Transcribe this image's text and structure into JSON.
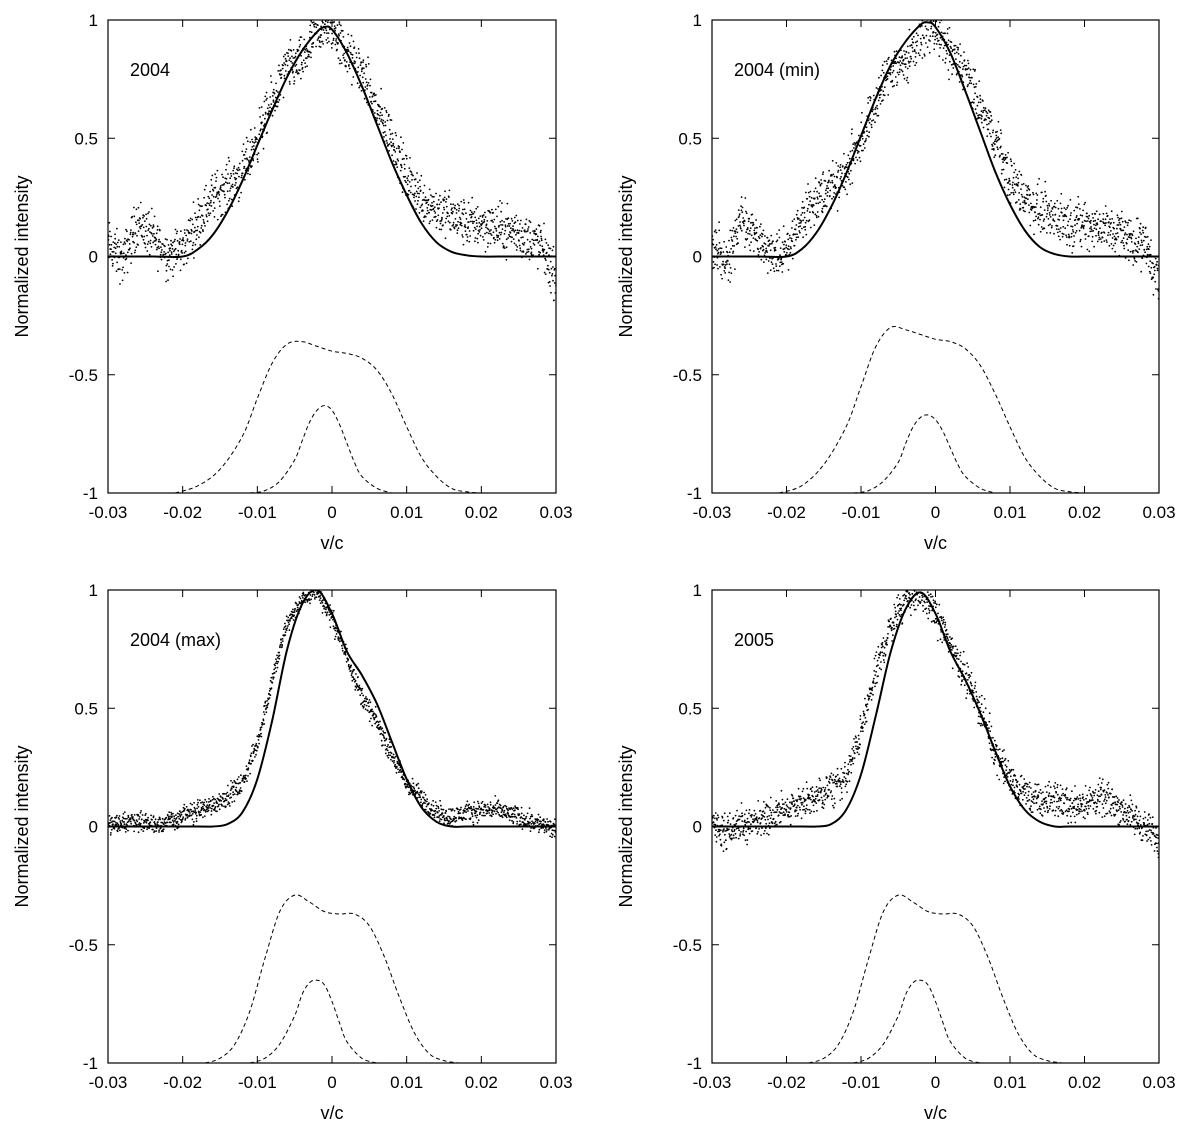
{
  "chart_data": [
    {
      "type": "scatter",
      "label": "2004",
      "xlabel": "v/c",
      "ylabel": "Normalized intensity",
      "xlim": [
        -0.03,
        0.03
      ],
      "ylim": [
        -1,
        1
      ],
      "xticks": [
        "-0.03",
        "-0.02",
        "-0.01",
        "0",
        "0.01",
        "0.02",
        "0.03"
      ],
      "yticks": [
        "-1",
        "-0.5",
        "0",
        "0.5",
        "1"
      ],
      "grid": false,
      "observed": {
        "style": "dots",
        "x": [
          -0.03,
          -0.028,
          -0.026,
          -0.024,
          -0.022,
          -0.02,
          -0.018,
          -0.016,
          -0.014,
          -0.012,
          -0.01,
          -0.008,
          -0.006,
          -0.004,
          -0.002,
          0.0,
          0.002,
          0.004,
          0.006,
          0.008,
          0.01,
          0.012,
          0.014,
          0.016,
          0.018,
          0.02,
          0.022,
          0.024,
          0.026,
          0.028,
          0.03
        ],
        "y": [
          0.05,
          -0.02,
          0.15,
          0.08,
          0.01,
          0.03,
          0.15,
          0.25,
          0.3,
          0.35,
          0.5,
          0.65,
          0.8,
          0.82,
          0.95,
          0.97,
          0.85,
          0.78,
          0.62,
          0.5,
          0.33,
          0.25,
          0.2,
          0.17,
          0.14,
          0.14,
          0.12,
          0.11,
          0.08,
          0.05,
          -0.1
        ],
        "spread": 0.07
      },
      "model": {
        "style": "solid",
        "x": [
          -0.03,
          -0.024,
          -0.02,
          -0.018,
          -0.016,
          -0.014,
          -0.012,
          -0.01,
          -0.008,
          -0.006,
          -0.004,
          -0.002,
          -0.001,
          0.0,
          0.002,
          0.004,
          0.006,
          0.008,
          0.01,
          0.012,
          0.014,
          0.016,
          0.018,
          0.02,
          0.024,
          0.03
        ],
        "y": [
          0.0,
          0.0,
          0.0,
          0.03,
          0.09,
          0.19,
          0.32,
          0.47,
          0.62,
          0.76,
          0.87,
          0.95,
          0.97,
          0.96,
          0.86,
          0.72,
          0.56,
          0.4,
          0.26,
          0.14,
          0.06,
          0.02,
          0.005,
          0.0,
          0.0,
          0.0
        ]
      },
      "components": [
        {
          "style": "dashed",
          "x": [
            -0.021,
            -0.018,
            -0.015,
            -0.012,
            -0.01,
            -0.008,
            -0.006,
            -0.004,
            -0.002,
            0.0,
            0.002,
            0.004,
            0.006,
            0.008,
            0.01,
            0.012,
            0.014,
            0.016,
            0.018,
            0.02
          ],
          "y": [
            -1.0,
            -0.97,
            -0.9,
            -0.76,
            -0.6,
            -0.45,
            -0.37,
            -0.36,
            -0.38,
            -0.4,
            -0.41,
            -0.43,
            -0.48,
            -0.58,
            -0.72,
            -0.85,
            -0.93,
            -0.98,
            -0.995,
            -1.0
          ]
        },
        {
          "style": "dashed",
          "x": [
            -0.011,
            -0.009,
            -0.007,
            -0.005,
            -0.004,
            -0.003,
            -0.002,
            -0.001,
            0.0,
            0.001,
            0.002,
            0.003,
            0.004,
            0.006,
            0.008
          ],
          "y": [
            -1.0,
            -0.99,
            -0.95,
            -0.86,
            -0.78,
            -0.7,
            -0.65,
            -0.63,
            -0.65,
            -0.71,
            -0.79,
            -0.87,
            -0.93,
            -0.98,
            -1.0
          ]
        }
      ]
    },
    {
      "type": "scatter",
      "label": "2004 (min)",
      "xlabel": "v/c",
      "ylabel": "Normalized intensity",
      "xlim": [
        -0.03,
        0.03
      ],
      "ylim": [
        -1,
        1
      ],
      "xticks": [
        "-0.03",
        "-0.02",
        "-0.01",
        "0",
        "0.01",
        "0.02",
        "0.03"
      ],
      "yticks": [
        "-1",
        "-0.5",
        "0",
        "0.5",
        "1"
      ],
      "grid": false,
      "observed": {
        "style": "dots",
        "x": [
          -0.03,
          -0.028,
          -0.026,
          -0.024,
          -0.022,
          -0.02,
          -0.018,
          -0.016,
          -0.014,
          -0.012,
          -0.01,
          -0.008,
          -0.006,
          -0.004,
          -0.002,
          0.0,
          0.002,
          0.004,
          0.006,
          0.008,
          0.01,
          0.012,
          0.014,
          0.016,
          0.018,
          0.02,
          0.022,
          0.024,
          0.026,
          0.028,
          0.03
        ],
        "y": [
          0.05,
          -0.02,
          0.15,
          0.08,
          0.01,
          0.03,
          0.15,
          0.25,
          0.3,
          0.35,
          0.5,
          0.65,
          0.8,
          0.82,
          0.95,
          0.97,
          0.85,
          0.78,
          0.62,
          0.5,
          0.33,
          0.25,
          0.2,
          0.17,
          0.14,
          0.14,
          0.12,
          0.11,
          0.08,
          0.05,
          -0.1
        ],
        "spread": 0.07
      },
      "model": {
        "style": "solid",
        "x": [
          -0.03,
          -0.024,
          -0.02,
          -0.018,
          -0.016,
          -0.014,
          -0.012,
          -0.01,
          -0.008,
          -0.006,
          -0.004,
          -0.002,
          -0.001,
          0.0,
          0.002,
          0.004,
          0.006,
          0.008,
          0.01,
          0.012,
          0.014,
          0.016,
          0.018,
          0.02,
          0.024,
          0.03
        ],
        "y": [
          0.0,
          0.0,
          0.0,
          0.03,
          0.1,
          0.21,
          0.35,
          0.51,
          0.67,
          0.81,
          0.91,
          0.98,
          0.99,
          0.97,
          0.86,
          0.7,
          0.53,
          0.36,
          0.22,
          0.11,
          0.04,
          0.01,
          0.0,
          0.0,
          0.0,
          0.0
        ]
      },
      "components": [
        {
          "style": "dashed",
          "x": [
            -0.021,
            -0.018,
            -0.015,
            -0.012,
            -0.01,
            -0.008,
            -0.006,
            -0.004,
            -0.002,
            0.0,
            0.002,
            0.004,
            0.006,
            0.008,
            0.01,
            0.012,
            0.014,
            0.016,
            0.018,
            0.02
          ],
          "y": [
            -1.0,
            -0.97,
            -0.88,
            -0.72,
            -0.55,
            -0.38,
            -0.3,
            -0.31,
            -0.33,
            -0.35,
            -0.36,
            -0.39,
            -0.46,
            -0.58,
            -0.72,
            -0.85,
            -0.93,
            -0.98,
            -0.995,
            -1.0
          ]
        },
        {
          "style": "dashed",
          "x": [
            -0.011,
            -0.009,
            -0.007,
            -0.005,
            -0.004,
            -0.003,
            -0.002,
            -0.001,
            0.0,
            0.001,
            0.002,
            0.003,
            0.004,
            0.006,
            0.008
          ],
          "y": [
            -1.0,
            -0.99,
            -0.95,
            -0.87,
            -0.79,
            -0.72,
            -0.68,
            -0.67,
            -0.69,
            -0.74,
            -0.81,
            -0.88,
            -0.93,
            -0.98,
            -1.0
          ]
        }
      ]
    },
    {
      "type": "scatter",
      "label": "2004 (max)",
      "xlabel": "v/c",
      "ylabel": "Normalized intensity",
      "xlim": [
        -0.03,
        0.03
      ],
      "ylim": [
        -1,
        1
      ],
      "xticks": [
        "-0.03",
        "-0.02",
        "-0.01",
        "0",
        "0.01",
        "0.02",
        "0.03"
      ],
      "yticks": [
        "-1",
        "-0.5",
        "0",
        "0.5",
        "1"
      ],
      "grid": false,
      "observed": {
        "style": "dots",
        "x": [
          -0.03,
          -0.028,
          -0.026,
          -0.024,
          -0.022,
          -0.02,
          -0.018,
          -0.016,
          -0.014,
          -0.012,
          -0.01,
          -0.008,
          -0.006,
          -0.004,
          -0.002,
          0.0,
          0.002,
          0.004,
          0.006,
          0.008,
          0.01,
          0.012,
          0.014,
          0.016,
          0.018,
          0.02,
          0.022,
          0.024,
          0.026,
          0.028,
          0.03
        ],
        "y": [
          0.01,
          0.02,
          0.03,
          0.01,
          0.02,
          0.04,
          0.07,
          0.09,
          0.13,
          0.18,
          0.35,
          0.62,
          0.86,
          0.96,
          1.0,
          0.88,
          0.72,
          0.55,
          0.44,
          0.3,
          0.18,
          0.12,
          0.06,
          0.04,
          0.06,
          0.07,
          0.07,
          0.05,
          0.03,
          0.01,
          -0.02
        ],
        "spread": 0.03
      },
      "model": {
        "style": "solid",
        "x": [
          -0.03,
          -0.018,
          -0.016,
          -0.014,
          -0.012,
          -0.01,
          -0.008,
          -0.006,
          -0.004,
          -0.002,
          0.0,
          0.002,
          0.004,
          0.006,
          0.008,
          0.01,
          0.012,
          0.014,
          0.016,
          0.018,
          0.02,
          0.03
        ],
        "y": [
          0.0,
          0.0,
          0.0,
          0.01,
          0.06,
          0.2,
          0.45,
          0.75,
          0.94,
          1.0,
          0.9,
          0.74,
          0.64,
          0.52,
          0.36,
          0.2,
          0.08,
          0.02,
          0.0,
          0.0,
          0.0,
          0.0
        ]
      },
      "components": [
        {
          "style": "dashed",
          "x": [
            -0.017,
            -0.015,
            -0.013,
            -0.011,
            -0.009,
            -0.007,
            -0.005,
            -0.003,
            -0.001,
            0.001,
            0.003,
            0.005,
            0.007,
            0.009,
            0.011,
            0.013,
            0.015,
            0.017
          ],
          "y": [
            -1.0,
            -0.98,
            -0.92,
            -0.78,
            -0.56,
            -0.36,
            -0.29,
            -0.32,
            -0.36,
            -0.37,
            -0.37,
            -0.42,
            -0.55,
            -0.72,
            -0.87,
            -0.96,
            -0.99,
            -1.0
          ]
        },
        {
          "style": "dashed",
          "x": [
            -0.011,
            -0.009,
            -0.007,
            -0.005,
            -0.004,
            -0.003,
            -0.002,
            -0.001,
            0.0,
            0.001,
            0.002,
            0.004,
            0.006
          ],
          "y": [
            -1.0,
            -0.98,
            -0.92,
            -0.8,
            -0.71,
            -0.66,
            -0.65,
            -0.67,
            -0.74,
            -0.83,
            -0.91,
            -0.98,
            -1.0
          ]
        }
      ]
    },
    {
      "type": "scatter",
      "label": "2005",
      "xlabel": "v/c",
      "ylabel": "Normalized intensity",
      "xlim": [
        -0.03,
        0.03
      ],
      "ylim": [
        -1,
        1
      ],
      "xticks": [
        "-0.03",
        "-0.02",
        "-0.01",
        "0",
        "0.01",
        "0.02",
        "0.03"
      ],
      "yticks": [
        "-1",
        "-0.5",
        "0",
        "0.5",
        "1"
      ],
      "grid": false,
      "observed": {
        "style": "dots",
        "x": [
          -0.03,
          -0.028,
          -0.026,
          -0.024,
          -0.022,
          -0.02,
          -0.018,
          -0.016,
          -0.014,
          -0.012,
          -0.01,
          -0.008,
          -0.006,
          -0.004,
          -0.002,
          0.0,
          0.002,
          0.004,
          0.006,
          0.008,
          0.01,
          0.012,
          0.014,
          0.016,
          0.018,
          0.02,
          0.022,
          0.024,
          0.026,
          0.028,
          0.03
        ],
        "y": [
          0.02,
          -0.02,
          0.02,
          0.02,
          0.04,
          0.08,
          0.1,
          0.12,
          0.16,
          0.2,
          0.4,
          0.65,
          0.85,
          0.96,
          0.99,
          0.9,
          0.77,
          0.64,
          0.5,
          0.32,
          0.2,
          0.14,
          0.1,
          0.12,
          0.09,
          0.1,
          0.12,
          0.1,
          0.05,
          0.0,
          -0.06
        ],
        "spread": 0.05
      },
      "model": {
        "style": "solid",
        "x": [
          -0.03,
          -0.018,
          -0.016,
          -0.014,
          -0.012,
          -0.01,
          -0.008,
          -0.006,
          -0.004,
          -0.002,
          0.0,
          0.002,
          0.004,
          0.006,
          0.008,
          0.01,
          0.012,
          0.014,
          0.016,
          0.018,
          0.02,
          0.03
        ],
        "y": [
          0.0,
          0.0,
          0.0,
          0.01,
          0.07,
          0.22,
          0.47,
          0.74,
          0.92,
          0.99,
          0.9,
          0.74,
          0.62,
          0.48,
          0.32,
          0.17,
          0.07,
          0.02,
          0.0,
          0.0,
          0.0,
          0.0
        ]
      },
      "components": [
        {
          "style": "dashed",
          "x": [
            -0.017,
            -0.015,
            -0.013,
            -0.011,
            -0.009,
            -0.007,
            -0.005,
            -0.003,
            -0.001,
            0.001,
            0.003,
            0.005,
            0.007,
            0.009,
            0.011,
            0.013,
            0.015,
            0.017
          ],
          "y": [
            -1.0,
            -0.98,
            -0.92,
            -0.78,
            -0.56,
            -0.36,
            -0.29,
            -0.32,
            -0.36,
            -0.37,
            -0.37,
            -0.42,
            -0.55,
            -0.72,
            -0.87,
            -0.96,
            -0.99,
            -1.0
          ]
        },
        {
          "style": "dashed",
          "x": [
            -0.011,
            -0.009,
            -0.007,
            -0.005,
            -0.004,
            -0.003,
            -0.002,
            -0.001,
            0.0,
            0.001,
            0.002,
            0.004,
            0.006
          ],
          "y": [
            -1.0,
            -0.98,
            -0.92,
            -0.8,
            -0.71,
            -0.66,
            -0.65,
            -0.67,
            -0.74,
            -0.83,
            -0.91,
            -0.98,
            -1.0
          ]
        }
      ]
    }
  ]
}
